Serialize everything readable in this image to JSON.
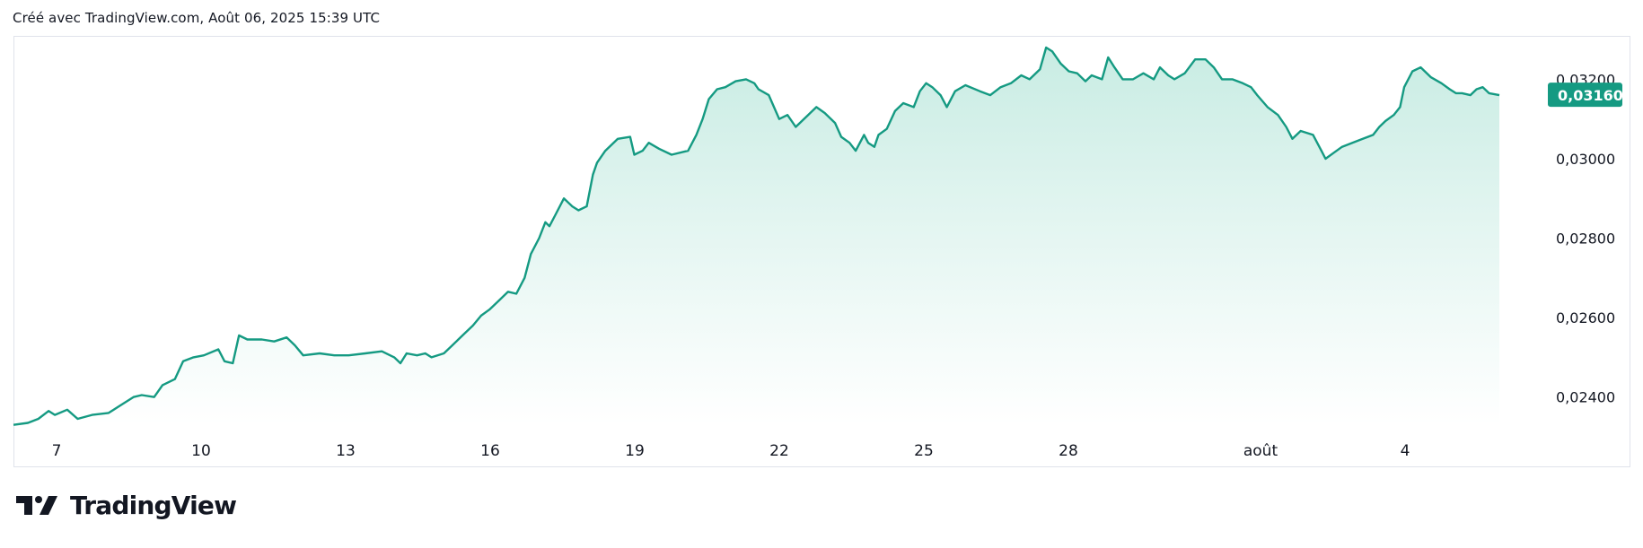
{
  "header": {
    "caption": "Créé avec TradingView.com, Août 06, 2025 15:39 UTC"
  },
  "brand": {
    "name": "TradingView",
    "logo_icon": "tradingview-logo-icon"
  },
  "colors": {
    "line": "#159a82",
    "fill_top": "#c8ece3",
    "fill_bottom": "#ffffff",
    "label_bg": "#159a82"
  },
  "chart_data": {
    "type": "area",
    "x_tick_labels": [
      "7",
      "10",
      "13",
      "16",
      "19",
      "22",
      "25",
      "28",
      "août",
      "4"
    ],
    "y_tick_labels": [
      "0,03200",
      "0,03000",
      "0,02800",
      "0,02600",
      "0,02400"
    ],
    "y_ticks": [
      0.032,
      0.03,
      0.028,
      0.026,
      0.024
    ],
    "ylim": [
      0.02327,
      0.03307
    ],
    "last_price_label": "0,03160",
    "last_price": 0.0316,
    "x_unit": "days since Jul 6",
    "points": [
      [
        0.0,
        0.0233
      ],
      [
        0.35,
        0.02335
      ],
      [
        0.6,
        0.02345
      ],
      [
        0.85,
        0.02365
      ],
      [
        1.0,
        0.02355
      ],
      [
        1.3,
        0.02368
      ],
      [
        1.55,
        0.02345
      ],
      [
        1.9,
        0.02355
      ],
      [
        2.3,
        0.0236
      ],
      [
        2.6,
        0.0238
      ],
      [
        2.9,
        0.024
      ],
      [
        3.1,
        0.02405
      ],
      [
        3.4,
        0.024
      ],
      [
        3.6,
        0.0243
      ],
      [
        3.9,
        0.02445
      ],
      [
        4.1,
        0.0249
      ],
      [
        4.35,
        0.025
      ],
      [
        4.6,
        0.02505
      ],
      [
        4.95,
        0.0252
      ],
      [
        5.1,
        0.0249
      ],
      [
        5.3,
        0.02485
      ],
      [
        5.45,
        0.02555
      ],
      [
        5.65,
        0.02545
      ],
      [
        6.0,
        0.02545
      ],
      [
        6.3,
        0.0254
      ],
      [
        6.6,
        0.0255
      ],
      [
        6.8,
        0.0253
      ],
      [
        7.0,
        0.02505
      ],
      [
        7.4,
        0.0251
      ],
      [
        7.75,
        0.02505
      ],
      [
        8.1,
        0.02505
      ],
      [
        8.5,
        0.0251
      ],
      [
        8.9,
        0.02515
      ],
      [
        9.2,
        0.025
      ],
      [
        9.35,
        0.02485
      ],
      [
        9.5,
        0.0251
      ],
      [
        9.75,
        0.02505
      ],
      [
        9.95,
        0.0251
      ],
      [
        10.1,
        0.025
      ],
      [
        10.4,
        0.0251
      ],
      [
        10.6,
        0.0253
      ],
      [
        10.9,
        0.0256
      ],
      [
        11.1,
        0.0258
      ],
      [
        11.3,
        0.02605
      ],
      [
        11.5,
        0.0262
      ],
      [
        11.7,
        0.0264
      ],
      [
        11.95,
        0.02665
      ],
      [
        12.15,
        0.0266
      ],
      [
        12.35,
        0.027
      ],
      [
        12.5,
        0.0276
      ],
      [
        12.7,
        0.028
      ],
      [
        12.85,
        0.0284
      ],
      [
        12.95,
        0.0283
      ],
      [
        13.1,
        0.0286
      ],
      [
        13.3,
        0.029
      ],
      [
        13.5,
        0.0288
      ],
      [
        13.65,
        0.0287
      ],
      [
        13.85,
        0.0288
      ],
      [
        14.0,
        0.0296
      ],
      [
        14.1,
        0.0299
      ],
      [
        14.3,
        0.0302
      ],
      [
        14.6,
        0.0305
      ],
      [
        14.9,
        0.03055
      ],
      [
        15.0,
        0.0301
      ],
      [
        15.2,
        0.0302
      ],
      [
        15.35,
        0.0304
      ],
      [
        15.6,
        0.03025
      ],
      [
        15.9,
        0.0301
      ],
      [
        16.3,
        0.0302
      ],
      [
        16.5,
        0.0306
      ],
      [
        16.65,
        0.031
      ],
      [
        16.8,
        0.0315
      ],
      [
        17.0,
        0.03175
      ],
      [
        17.2,
        0.0318
      ],
      [
        17.45,
        0.03195
      ],
      [
        17.7,
        0.032
      ],
      [
        17.9,
        0.0319
      ],
      [
        18.0,
        0.03175
      ],
      [
        18.25,
        0.0316
      ],
      [
        18.5,
        0.031
      ],
      [
        18.7,
        0.0311
      ],
      [
        18.9,
        0.0308
      ],
      [
        19.2,
        0.0311
      ],
      [
        19.4,
        0.0313
      ],
      [
        19.6,
        0.03115
      ],
      [
        19.85,
        0.0309
      ],
      [
        20.0,
        0.03055
      ],
      [
        20.2,
        0.0304
      ],
      [
        20.35,
        0.0302
      ],
      [
        20.55,
        0.0306
      ],
      [
        20.65,
        0.0304
      ],
      [
        20.8,
        0.0303
      ],
      [
        20.9,
        0.0306
      ],
      [
        21.1,
        0.03075
      ],
      [
        21.3,
        0.0312
      ],
      [
        21.5,
        0.0314
      ],
      [
        21.75,
        0.0313
      ],
      [
        21.9,
        0.0317
      ],
      [
        22.05,
        0.0319
      ],
      [
        22.2,
        0.0318
      ],
      [
        22.4,
        0.0316
      ],
      [
        22.55,
        0.0313
      ],
      [
        22.75,
        0.0317
      ],
      [
        23.0,
        0.03185
      ],
      [
        23.35,
        0.0317
      ],
      [
        23.6,
        0.0316
      ],
      [
        23.85,
        0.0318
      ],
      [
        24.1,
        0.0319
      ],
      [
        24.35,
        0.0321
      ],
      [
        24.55,
        0.032
      ],
      [
        24.8,
        0.03225
      ],
      [
        24.95,
        0.0328
      ],
      [
        25.1,
        0.0327
      ],
      [
        25.3,
        0.0324
      ],
      [
        25.5,
        0.0322
      ],
      [
        25.7,
        0.03215
      ],
      [
        25.9,
        0.03195
      ],
      [
        26.05,
        0.0321
      ],
      [
        26.3,
        0.032
      ],
      [
        26.45,
        0.03255
      ],
      [
        26.6,
        0.0323
      ],
      [
        26.8,
        0.032
      ],
      [
        27.05,
        0.032
      ],
      [
        27.3,
        0.03215
      ],
      [
        27.55,
        0.032
      ],
      [
        27.7,
        0.0323
      ],
      [
        27.9,
        0.0321
      ],
      [
        28.05,
        0.032
      ],
      [
        28.3,
        0.03215
      ],
      [
        28.55,
        0.0325
      ],
      [
        28.8,
        0.0325
      ],
      [
        29.0,
        0.0323
      ],
      [
        29.2,
        0.032
      ],
      [
        29.45,
        0.032
      ],
      [
        29.7,
        0.0319
      ],
      [
        29.9,
        0.0318
      ],
      [
        30.05,
        0.0316
      ],
      [
        30.3,
        0.0313
      ],
      [
        30.55,
        0.0311
      ],
      [
        30.75,
        0.0308
      ],
      [
        30.9,
        0.0305
      ],
      [
        31.1,
        0.0307
      ],
      [
        31.4,
        0.0306
      ],
      [
        31.6,
        0.0302
      ],
      [
        31.7,
        0.03
      ],
      [
        31.9,
        0.03015
      ],
      [
        32.1,
        0.0303
      ],
      [
        32.35,
        0.0304
      ],
      [
        32.6,
        0.0305
      ],
      [
        32.85,
        0.0306
      ],
      [
        33.0,
        0.0308
      ],
      [
        33.15,
        0.03095
      ],
      [
        33.35,
        0.0311
      ],
      [
        33.5,
        0.0313
      ],
      [
        33.6,
        0.0318
      ],
      [
        33.8,
        0.0322
      ],
      [
        34.0,
        0.0323
      ],
      [
        34.25,
        0.03205
      ],
      [
        34.5,
        0.0319
      ],
      [
        34.7,
        0.03175
      ],
      [
        34.85,
        0.03165
      ],
      [
        35.0,
        0.03165
      ],
      [
        35.2,
        0.0316
      ],
      [
        35.35,
        0.03175
      ],
      [
        35.5,
        0.0318
      ],
      [
        35.65,
        0.03165
      ],
      [
        35.9,
        0.0316
      ]
    ]
  }
}
